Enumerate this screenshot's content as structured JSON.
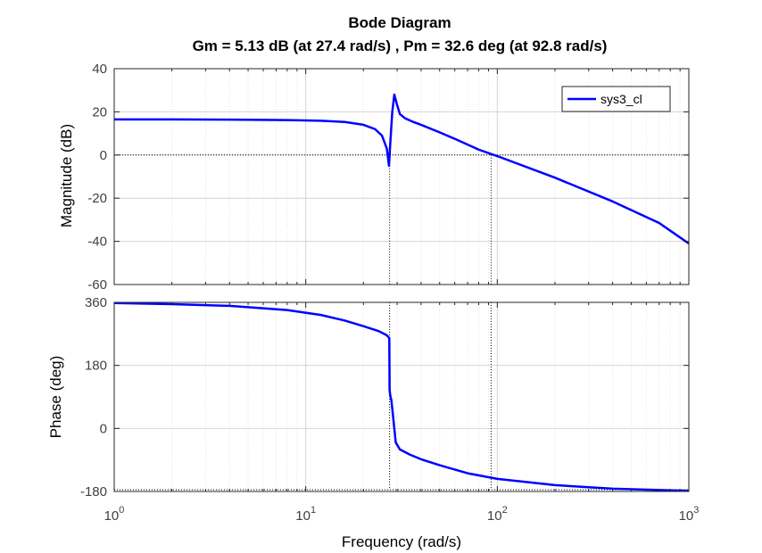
{
  "chart_data": {
    "type": "line",
    "title": "Bode Diagram",
    "subtitle": "Gm = 5.13 dB (at 27.4 rad/s) ,  Pm = 32.6 deg (at 92.8 rad/s)",
    "xlabel": "Frequency  (rad/s)",
    "xscale": "log",
    "xlim": [
      1,
      1000
    ],
    "x_ticks": [
      {
        "base": "10",
        "exp": "0"
      },
      {
        "base": "10",
        "exp": "1"
      },
      {
        "base": "10",
        "exp": "2"
      },
      {
        "base": "10",
        "exp": "3"
      }
    ],
    "grid": true,
    "line_color": "#0000ff",
    "margin_line_color": "#000000",
    "legend": {
      "position": "top-right",
      "entries": [
        "sys3_cl"
      ]
    },
    "gain_margin_freq": 27.4,
    "phase_margin_freq": 92.8,
    "magnitude": {
      "ylabel": "Magnitude (dB)",
      "ylim": [
        -60,
        40
      ],
      "yticks": [
        "40",
        "20",
        "0",
        "-20",
        "-40",
        "-60"
      ],
      "series": [
        {
          "name": "sys3_cl",
          "x": [
            1,
            2,
            4,
            8,
            12,
            16,
            20,
            23,
            25,
            26.5,
            27.2,
            27.6,
            28.3,
            29,
            29.8,
            31,
            33,
            36,
            40,
            50,
            60,
            80,
            100,
            200,
            400,
            700,
            1000
          ],
          "y": [
            16.5,
            16.5,
            16.4,
            16.2,
            15.9,
            15.3,
            14.0,
            12.0,
            9.0,
            3.0,
            -5.0,
            5.0,
            20.0,
            28.0,
            24.0,
            19.0,
            17.0,
            15.5,
            14.0,
            10.5,
            7.5,
            2.5,
            -0.5,
            -10.5,
            -21.5,
            -31.5,
            -41.0
          ]
        }
      ]
    },
    "phase": {
      "ylabel": "Phase (deg)",
      "ylim": [
        -180,
        360
      ],
      "yticks": [
        "360",
        "180",
        "0",
        "-180"
      ],
      "series": [
        {
          "name": "sys3_cl",
          "x": [
            1,
            2,
            4,
            8,
            12,
            16,
            20,
            24,
            26.5,
            27.3,
            27.4,
            27.6,
            28,
            28.5,
            29.5,
            31,
            35,
            40,
            50,
            70,
            100,
            200,
            400,
            700,
            1000
          ],
          "y": [
            358,
            355,
            350,
            338,
            324,
            308,
            292,
            278,
            266,
            258,
            110,
            95,
            80,
            40,
            -40,
            -60,
            -75,
            -88,
            -105,
            -128,
            -144,
            -162,
            -172,
            -176,
            -178
          ]
        }
      ]
    }
  }
}
